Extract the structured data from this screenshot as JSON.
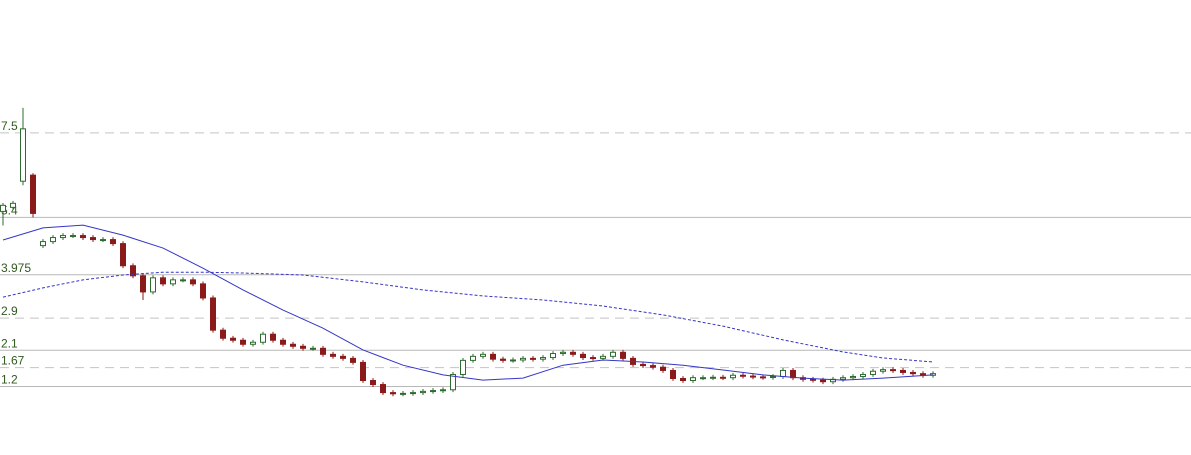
{
  "chart_data": {
    "type": "candlestick",
    "ylim": [
      -0.5,
      10.8
    ],
    "yticks": [
      7.5,
      5.4,
      3.975,
      2.9,
      2.1,
      1.67,
      1.2
    ],
    "grid_styles": [
      "dashed",
      "solid",
      "solid",
      "dashed",
      "solid",
      "dashed",
      "solid"
    ],
    "up_color": "#2e6b2e",
    "down_color": "#8b1a1a",
    "open": [
      5.55,
      5.65,
      6.3,
      6.45,
      4.7,
      4.8,
      4.9,
      4.95,
      4.95,
      4.9,
      4.85,
      4.85,
      4.75,
      4.2,
      3.95,
      3.55,
      3.9,
      3.75,
      3.85,
      3.85,
      3.75,
      3.4,
      2.6,
      2.4,
      2.35,
      2.25,
      2.3,
      2.5,
      2.35,
      2.25,
      2.2,
      2.15,
      2.15,
      2.0,
      1.95,
      1.9,
      1.8,
      1.35,
      1.25,
      1.05,
      1.02,
      1.03,
      1.05,
      1.08,
      1.1,
      1.12,
      1.5,
      1.85,
      1.95,
      2.0,
      1.88,
      1.85,
      1.86,
      1.9,
      1.88,
      1.92,
      2.02,
      2.05,
      2.0,
      1.92,
      1.9,
      1.95,
      2.05,
      1.9,
      1.75,
      1.72,
      1.68,
      1.6,
      1.4,
      1.35,
      1.42,
      1.42,
      1.43,
      1.42,
      1.48,
      1.46,
      1.44,
      1.43,
      1.45,
      1.6,
      1.42,
      1.38,
      1.36,
      1.32,
      1.38,
      1.42,
      1.45,
      1.5,
      1.58,
      1.62,
      1.6,
      1.55,
      1.52,
      1.48
    ],
    "high": [
      5.76,
      5.81,
      8.12,
      6.5,
      4.86,
      4.96,
      5.01,
      5.01,
      5.01,
      4.96,
      4.91,
      4.91,
      4.81,
      4.26,
      4.01,
      3.96,
      3.96,
      3.91,
      3.91,
      3.91,
      3.81,
      3.46,
      2.66,
      2.46,
      2.41,
      2.36,
      2.56,
      2.56,
      2.41,
      2.31,
      2.26,
      2.21,
      2.21,
      2.06,
      2.01,
      1.96,
      1.86,
      1.41,
      1.31,
      1.11,
      1.09,
      1.11,
      1.14,
      1.16,
      1.18,
      1.56,
      1.91,
      2.01,
      2.06,
      2.06,
      1.94,
      1.92,
      1.96,
      1.96,
      1.98,
      2.08,
      2.11,
      2.11,
      2.06,
      1.98,
      2.01,
      2.11,
      2.11,
      1.96,
      1.81,
      1.78,
      1.74,
      1.66,
      1.46,
      1.48,
      1.48,
      1.49,
      1.49,
      1.54,
      1.54,
      1.52,
      1.5,
      1.51,
      1.66,
      1.66,
      1.48,
      1.44,
      1.42,
      1.44,
      1.48,
      1.51,
      1.56,
      1.64,
      1.68,
      1.68,
      1.66,
      1.61,
      1.58,
      1.58
    ],
    "low": [
      5.2,
      5.59,
      6.2,
      5.4,
      4.64,
      4.74,
      4.84,
      4.89,
      4.84,
      4.79,
      4.79,
      4.69,
      4.14,
      3.89,
      3.35,
      3.49,
      3.69,
      3.69,
      3.79,
      3.69,
      3.34,
      2.54,
      2.34,
      2.29,
      2.19,
      2.19,
      2.24,
      2.29,
      2.19,
      2.14,
      2.09,
      2.09,
      1.94,
      1.89,
      1.84,
      1.74,
      1.29,
      1.19,
      0.99,
      0.96,
      0.96,
      0.97,
      0.99,
      1.02,
      1.04,
      1.06,
      1.44,
      1.79,
      1.89,
      1.82,
      1.79,
      1.79,
      1.8,
      1.82,
      1.82,
      1.86,
      1.96,
      1.94,
      1.86,
      1.84,
      1.84,
      1.89,
      1.84,
      1.69,
      1.66,
      1.62,
      1.54,
      1.34,
      1.29,
      1.29,
      1.36,
      1.36,
      1.36,
      1.36,
      1.4,
      1.38,
      1.37,
      1.37,
      1.39,
      1.36,
      1.32,
      1.3,
      1.26,
      1.26,
      1.32,
      1.36,
      1.39,
      1.44,
      1.52,
      1.54,
      1.49,
      1.46,
      1.42,
      1.42
    ],
    "close": [
      5.7,
      5.75,
      7.6,
      5.5,
      4.8,
      4.9,
      4.95,
      4.95,
      4.9,
      4.85,
      4.85,
      4.75,
      4.2,
      3.95,
      3.55,
      3.9,
      3.75,
      3.85,
      3.85,
      3.75,
      3.4,
      2.6,
      2.4,
      2.35,
      2.25,
      2.3,
      2.5,
      2.35,
      2.25,
      2.2,
      2.15,
      2.15,
      2.0,
      1.95,
      1.9,
      1.8,
      1.35,
      1.25,
      1.05,
      1.02,
      1.03,
      1.05,
      1.08,
      1.1,
      1.12,
      1.5,
      1.85,
      1.95,
      2.0,
      1.88,
      1.85,
      1.86,
      1.9,
      1.88,
      1.92,
      2.02,
      2.05,
      2.0,
      1.92,
      1.9,
      1.95,
      2.05,
      1.9,
      1.75,
      1.72,
      1.68,
      1.6,
      1.4,
      1.35,
      1.42,
      1.42,
      1.43,
      1.42,
      1.48,
      1.46,
      1.44,
      1.43,
      1.45,
      1.6,
      1.42,
      1.38,
      1.36,
      1.32,
      1.38,
      1.42,
      1.45,
      1.5,
      1.58,
      1.62,
      1.6,
      1.55,
      1.52,
      1.48,
      1.52
    ],
    "series": [
      {
        "color": "#3535c8",
        "dash": "solid",
        "x": [
          0,
          4,
          8,
          12,
          16,
          20,
          24,
          28,
          32,
          36,
          40,
          44,
          48,
          52,
          56,
          60,
          64,
          68,
          72,
          76,
          80,
          84,
          88,
          93
        ],
        "values": [
          4.84,
          5.14,
          5.21,
          4.96,
          4.64,
          4.14,
          3.6,
          3.1,
          2.65,
          2.11,
          1.73,
          1.49,
          1.36,
          1.41,
          1.73,
          1.86,
          1.81,
          1.73,
          1.61,
          1.49,
          1.41,
          1.36,
          1.41,
          1.49
        ]
      },
      {
        "color": "#3535c8",
        "dash": "dashed",
        "x": [
          0,
          4,
          8,
          12,
          16,
          20,
          24,
          30,
          36,
          42,
          48,
          54,
          60,
          66,
          72,
          78,
          84,
          88,
          93
        ],
        "values": [
          3.42,
          3.65,
          3.85,
          3.97,
          4.04,
          4.04,
          4.02,
          3.97,
          3.8,
          3.6,
          3.45,
          3.35,
          3.2,
          2.98,
          2.7,
          2.36,
          2.06,
          1.91,
          1.81
        ]
      }
    ]
  }
}
